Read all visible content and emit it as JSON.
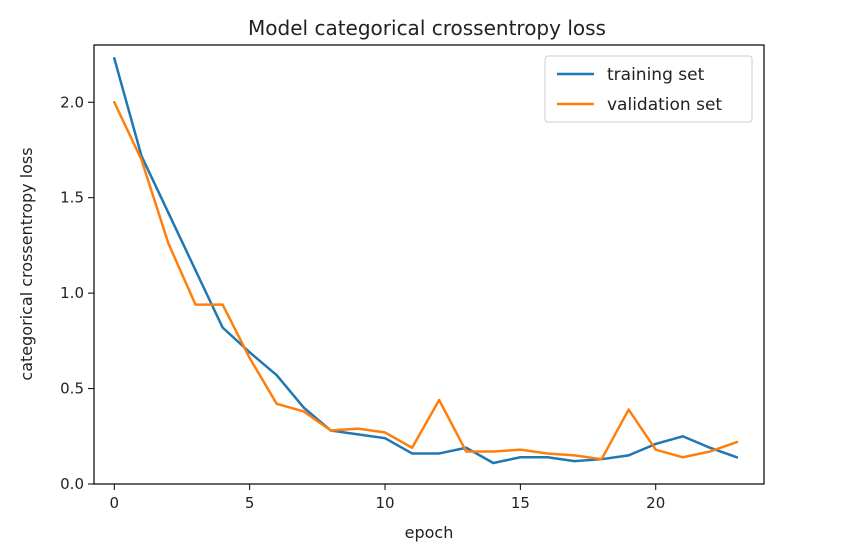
{
  "chart_data": {
    "type": "line",
    "title": "Model categorical crossentropy loss",
    "xlabel": "epoch",
    "ylabel": "categorical crossentropy loss",
    "xlim": [
      -0.75,
      24
    ],
    "ylim": [
      0,
      2.3
    ],
    "xticks": [
      0,
      5,
      10,
      15,
      20
    ],
    "yticks": [
      0.0,
      0.5,
      1.0,
      1.5,
      2.0
    ],
    "grid": false,
    "legend_position": "top-right",
    "x": [
      0,
      1,
      2,
      3,
      4,
      5,
      6,
      7,
      8,
      9,
      10,
      11,
      12,
      13,
      14,
      15,
      16,
      17,
      18,
      19,
      20,
      21,
      22,
      23
    ],
    "series": [
      {
        "name": "training set",
        "color": "#1f77b4",
        "values": [
          2.23,
          1.72,
          1.42,
          1.12,
          0.82,
          0.69,
          0.57,
          0.4,
          0.28,
          0.26,
          0.24,
          0.16,
          0.16,
          0.19,
          0.11,
          0.14,
          0.14,
          0.12,
          0.13,
          0.15,
          0.21,
          0.25,
          0.19,
          0.14
        ]
      },
      {
        "name": "validation set",
        "color": "#ff7f0e",
        "values": [
          2.0,
          1.7,
          1.26,
          0.94,
          0.94,
          0.66,
          0.42,
          0.38,
          0.28,
          0.29,
          0.27,
          0.19,
          0.44,
          0.17,
          0.17,
          0.18,
          0.16,
          0.15,
          0.13,
          0.39,
          0.18,
          0.14,
          0.17,
          0.22
        ]
      }
    ]
  }
}
